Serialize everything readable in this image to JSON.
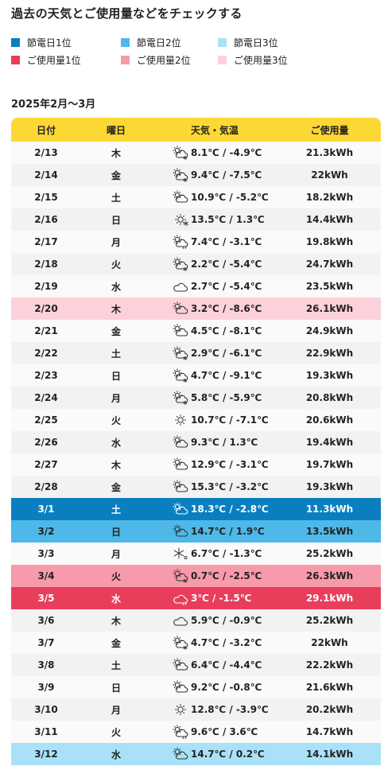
{
  "page": {
    "title": "過去の天気とご使用量などをチェックする",
    "period": "2025年2月〜3月"
  },
  "colors": {
    "saving1": "#0a7fc0",
    "saving2": "#4eb8e8",
    "saving3": "#a9e1f8",
    "usage1": "#e83e5b",
    "usage2": "#f79aa9",
    "usage3": "#fcd1da",
    "header": "#fdd835"
  },
  "legend": [
    {
      "label": "節電日1位",
      "color": "#0a7fc0"
    },
    {
      "label": "節電日2位",
      "color": "#4eb8e8"
    },
    {
      "label": "節電日3位",
      "color": "#a9e1f8"
    },
    {
      "label": "ご使用量1位",
      "color": "#e83e5b"
    },
    {
      "label": "ご使用量2位",
      "color": "#f79aa9"
    },
    {
      "label": "ご使用量3位",
      "color": "#fcd1da"
    }
  ],
  "table": {
    "headers": {
      "date": "日付",
      "day": "曜日",
      "weather": "天気・気温",
      "usage": "ご使用量"
    },
    "rows": [
      {
        "date": "2/13",
        "day": "木",
        "weather": "sun-cloud-snow-icon",
        "temp": "8.1℃ / -4.9℃",
        "usage": "21.3kWh",
        "rank": ""
      },
      {
        "date": "2/14",
        "day": "金",
        "weather": "sun-cloud-snow-icon",
        "temp": "9.4℃ / -7.5℃",
        "usage": "22kWh",
        "rank": ""
      },
      {
        "date": "2/15",
        "day": "土",
        "weather": "sun-cloud-icon",
        "temp": "10.9℃ / -5.2℃",
        "usage": "18.2kWh",
        "rank": ""
      },
      {
        "date": "2/16",
        "day": "日",
        "weather": "sun-snow-icon",
        "temp": "13.5℃ / 1.3℃",
        "usage": "14.4kWh",
        "rank": ""
      },
      {
        "date": "2/17",
        "day": "月",
        "weather": "sun-cloud-rain-icon",
        "temp": "7.4℃ / -3.1℃",
        "usage": "19.8kWh",
        "rank": ""
      },
      {
        "date": "2/18",
        "day": "火",
        "weather": "sun-cloud-snow-icon",
        "temp": "2.2℃ / -5.4℃",
        "usage": "24.7kWh",
        "rank": ""
      },
      {
        "date": "2/19",
        "day": "水",
        "weather": "cloud-icon",
        "temp": "2.7℃ / -5.4℃",
        "usage": "23.5kWh",
        "rank": ""
      },
      {
        "date": "2/20",
        "day": "木",
        "weather": "sun-cloud-icon",
        "temp": "3.2℃ / -8.6℃",
        "usage": "26.1kWh",
        "rank": "usage3"
      },
      {
        "date": "2/21",
        "day": "金",
        "weather": "sun-cloud-icon",
        "temp": "4.5℃ / -8.1℃",
        "usage": "24.9kWh",
        "rank": ""
      },
      {
        "date": "2/22",
        "day": "土",
        "weather": "sun-cloud-snow-icon",
        "temp": "2.9℃ / -6.1℃",
        "usage": "22.9kWh",
        "rank": ""
      },
      {
        "date": "2/23",
        "day": "日",
        "weather": "sun-cloud-snow-icon",
        "temp": "4.7℃ / -9.1℃",
        "usage": "19.3kWh",
        "rank": ""
      },
      {
        "date": "2/24",
        "day": "月",
        "weather": "sun-cloud-snow-icon",
        "temp": "5.8℃ / -5.9℃",
        "usage": "20.8kWh",
        "rank": ""
      },
      {
        "date": "2/25",
        "day": "火",
        "weather": "sun-icon",
        "temp": "10.7℃ / -7.1℃",
        "usage": "20.6kWh",
        "rank": ""
      },
      {
        "date": "2/26",
        "day": "水",
        "weather": "sun-cloud-icon",
        "temp": "9.3℃ / 1.3℃",
        "usage": "19.4kWh",
        "rank": ""
      },
      {
        "date": "2/27",
        "day": "木",
        "weather": "sun-cloud-icon",
        "temp": "12.9℃ / -3.1℃",
        "usage": "19.7kWh",
        "rank": ""
      },
      {
        "date": "2/28",
        "day": "金",
        "weather": "sun-cloud-icon",
        "temp": "15.3℃ / -3.2℃",
        "usage": "19.3kWh",
        "rank": ""
      },
      {
        "date": "3/1",
        "day": "土",
        "weather": "sun-cloud-icon",
        "temp": "18.3℃ / -2.8℃",
        "usage": "11.3kWh",
        "rank": "saving1"
      },
      {
        "date": "3/2",
        "day": "日",
        "weather": "cloud-sun-icon",
        "temp": "14.7℃ / 1.9℃",
        "usage": "13.5kWh",
        "rank": "saving2"
      },
      {
        "date": "3/3",
        "day": "月",
        "weather": "snow-sun-icon",
        "temp": "6.7℃ / -1.3℃",
        "usage": "25.2kWh",
        "rank": ""
      },
      {
        "date": "3/4",
        "day": "火",
        "weather": "sun-cloud-snow-icon",
        "temp": "0.7℃ / -2.5℃",
        "usage": "26.3kWh",
        "rank": "usage2"
      },
      {
        "date": "3/5",
        "day": "水",
        "weather": "cloud-rain-icon",
        "temp": "3℃ / -1.5℃",
        "usage": "29.1kWh",
        "rank": "usage1"
      },
      {
        "date": "3/6",
        "day": "木",
        "weather": "cloud-icon",
        "temp": "5.9℃ / -0.9℃",
        "usage": "25.2kWh",
        "rank": ""
      },
      {
        "date": "3/7",
        "day": "金",
        "weather": "sun-cloud-snow-icon",
        "temp": "4.7℃ / -3.2℃",
        "usage": "22kWh",
        "rank": ""
      },
      {
        "date": "3/8",
        "day": "土",
        "weather": "cloud-sun-icon",
        "temp": "6.4℃ / -4.4℃",
        "usage": "22.2kWh",
        "rank": ""
      },
      {
        "date": "3/9",
        "day": "日",
        "weather": "sun-cloud-icon",
        "temp": "9.2℃ / -0.8℃",
        "usage": "21.6kWh",
        "rank": ""
      },
      {
        "date": "3/10",
        "day": "月",
        "weather": "sun-icon",
        "temp": "12.8℃ / -3.9℃",
        "usage": "20.2kWh",
        "rank": ""
      },
      {
        "date": "3/11",
        "day": "火",
        "weather": "sun-cloud-rain-icon",
        "temp": "9.6℃ / 3.6℃",
        "usage": "14.7kWh",
        "rank": ""
      },
      {
        "date": "3/12",
        "day": "水",
        "weather": "sun-cloud-icon",
        "temp": "14.7℃ / 0.2℃",
        "usage": "14.1kWh",
        "rank": "saving3"
      }
    ]
  }
}
